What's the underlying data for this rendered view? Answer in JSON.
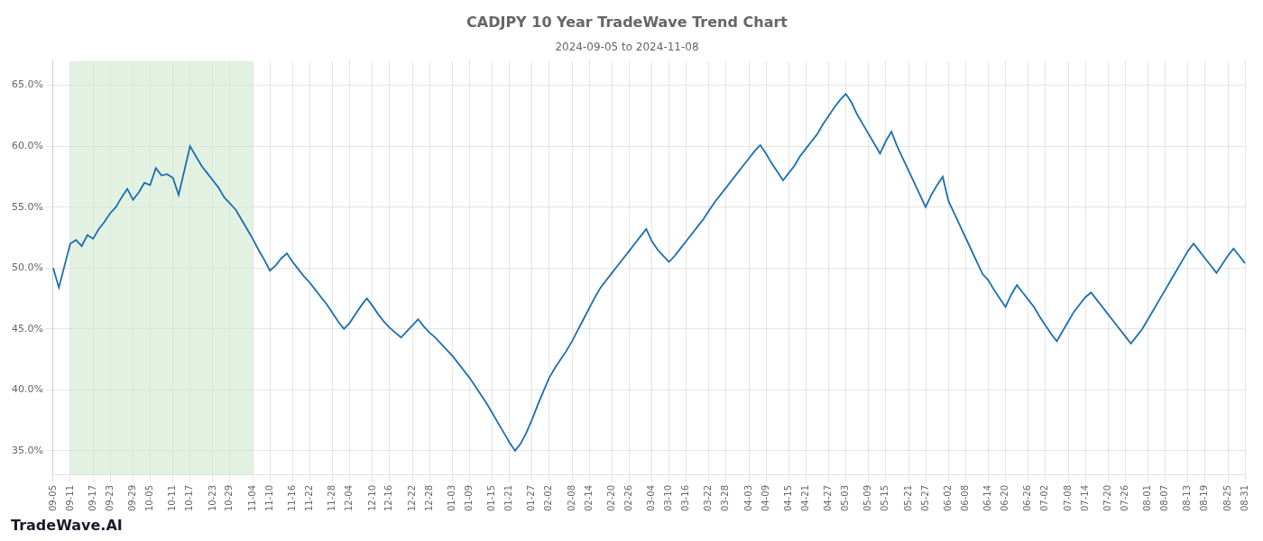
{
  "chart_data": {
    "type": "line",
    "title": "CADJPY 10 Year TradeWave Trend Chart",
    "subtitle": "2024-09-05 to 2024-11-08",
    "annotations": [
      "TradeWave.AI"
    ],
    "color": "#1a6faf",
    "grid": true,
    "ylim": [
      0.33,
      0.67
    ],
    "yticks": [
      {
        "value": 0.35,
        "label": "35.0%"
      },
      {
        "value": 0.4,
        "label": "40.0%"
      },
      {
        "value": 0.45,
        "label": "45.0%"
      },
      {
        "value": 0.5,
        "label": "50.0%"
      },
      {
        "value": 0.55,
        "label": "55.0%"
      },
      {
        "value": 0.6,
        "label": "60.0%"
      },
      {
        "value": 0.65,
        "label": "65.0%"
      }
    ],
    "shaded_range": {
      "from": "09-11",
      "to": "11-04",
      "color": "#d4ead4"
    },
    "categories": [
      "09-05",
      null,
      null,
      "09-11",
      null,
      null,
      null,
      "09-17",
      null,
      null,
      "09-23",
      null,
      null,
      null,
      "09-29",
      null,
      null,
      "10-05",
      null,
      null,
      null,
      "10-11",
      null,
      null,
      "10-17",
      null,
      null,
      null,
      "10-23",
      null,
      null,
      "10-29",
      null,
      null,
      null,
      "11-04",
      null,
      null,
      "11-10",
      null,
      null,
      null,
      "11-16",
      null,
      null,
      "11-22",
      null,
      null,
      null,
      "11-28",
      null,
      null,
      "12-04",
      null,
      null,
      null,
      "12-10",
      null,
      null,
      "12-16",
      null,
      null,
      null,
      "12-22",
      null,
      null,
      "12-28",
      null,
      null,
      null,
      "01-03",
      null,
      null,
      "01-09",
      null,
      null,
      null,
      "01-15",
      null,
      null,
      "01-21",
      null,
      null,
      null,
      "01-27",
      null,
      null,
      "02-02",
      null,
      null,
      null,
      "02-08",
      null,
      null,
      "02-14",
      null,
      null,
      null,
      "02-20",
      null,
      null,
      "02-26",
      null,
      null,
      null,
      "03-04",
      null,
      null,
      "03-10",
      null,
      null,
      "03-16",
      null,
      null,
      null,
      "03-22",
      null,
      null,
      "03-28",
      null,
      null,
      null,
      "04-03",
      null,
      null,
      "04-09",
      null,
      null,
      null,
      "04-15",
      null,
      null,
      "04-21",
      null,
      null,
      null,
      "04-27",
      null,
      null,
      "05-03",
      null,
      null,
      null,
      "05-09",
      null,
      null,
      "05-15",
      null,
      null,
      null,
      "05-21",
      null,
      null,
      "05-27",
      null,
      null,
      null,
      "06-02",
      null,
      null,
      "06-08",
      null,
      null,
      null,
      "06-14",
      null,
      null,
      "06-20",
      null,
      null,
      null,
      "06-26",
      null,
      null,
      "07-02",
      null,
      null,
      null,
      "07-08",
      null,
      null,
      "07-14",
      null,
      null,
      null,
      "07-20",
      null,
      null,
      "07-26",
      null,
      null,
      null,
      "08-01",
      null,
      null,
      "08-07",
      null,
      null,
      null,
      "08-13",
      null,
      null,
      "08-19",
      null,
      null,
      null,
      "08-25",
      null,
      null,
      "08-31"
    ],
    "values": [
      0.5,
      0.484,
      0.502,
      0.52,
      0.523,
      0.518,
      0.527,
      0.524,
      0.532,
      0.538,
      0.545,
      0.55,
      0.558,
      0.565,
      0.556,
      0.562,
      0.57,
      0.568,
      0.582,
      0.576,
      0.577,
      0.574,
      0.56,
      0.58,
      0.6,
      0.592,
      0.584,
      0.578,
      0.572,
      0.566,
      0.558,
      0.553,
      0.548,
      0.54,
      0.532,
      0.524,
      0.515,
      0.507,
      0.498,
      0.502,
      0.508,
      0.512,
      0.505,
      0.499,
      0.493,
      0.488,
      0.482,
      0.476,
      0.47,
      0.463,
      0.456,
      0.45,
      0.455,
      0.462,
      0.469,
      0.475,
      0.469,
      0.462,
      0.456,
      0.451,
      0.447,
      0.443,
      0.448,
      0.453,
      0.458,
      0.452,
      0.447,
      0.443,
      0.438,
      0.433,
      0.428,
      0.422,
      0.416,
      0.41,
      0.403,
      0.396,
      0.389,
      0.381,
      0.373,
      0.365,
      0.357,
      0.35,
      0.356,
      0.365,
      0.376,
      0.388,
      0.399,
      0.41,
      0.418,
      0.425,
      0.432,
      0.44,
      0.449,
      0.458,
      0.467,
      0.476,
      0.484,
      0.49,
      0.496,
      0.502,
      0.508,
      0.514,
      0.52,
      0.526,
      0.532,
      0.522,
      0.515,
      0.51,
      0.505,
      0.51,
      0.516,
      0.522,
      0.528,
      0.534,
      0.54,
      0.547,
      0.554,
      0.56,
      0.566,
      0.572,
      0.578,
      0.584,
      0.59,
      0.596,
      0.601,
      0.594,
      0.586,
      0.579,
      0.572,
      0.578,
      0.584,
      0.592,
      0.598,
      0.604,
      0.61,
      0.618,
      0.625,
      0.632,
      0.638,
      0.643,
      0.636,
      0.626,
      0.618,
      0.61,
      0.602,
      0.594,
      0.604,
      0.612,
      0.6,
      0.59,
      0.58,
      0.57,
      0.56,
      0.55,
      0.56,
      0.568,
      0.575,
      0.555,
      0.545,
      0.535,
      0.525,
      0.515,
      0.505,
      0.495,
      0.49,
      0.482,
      0.475,
      0.468,
      0.478,
      0.486,
      0.48,
      0.474,
      0.468,
      0.46,
      0.453,
      0.446,
      0.44,
      0.448,
      0.456,
      0.464,
      0.47,
      0.476,
      0.48,
      0.474,
      0.468,
      0.462,
      0.456,
      0.45,
      0.444,
      0.438,
      0.444,
      0.45,
      0.458,
      0.466,
      0.474,
      0.482,
      0.49,
      0.498,
      0.506,
      0.514,
      0.52,
      0.514,
      0.508,
      0.502,
      0.496,
      0.503,
      0.51,
      0.516,
      0.51,
      0.504
    ]
  }
}
